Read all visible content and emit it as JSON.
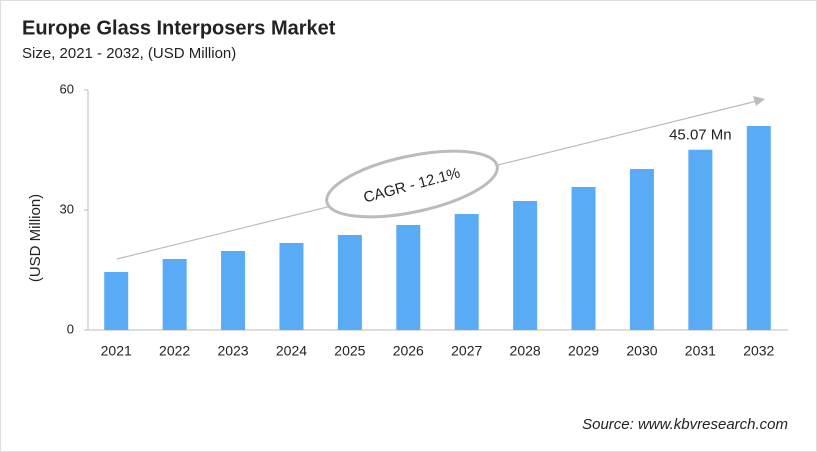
{
  "chart_data": {
    "type": "bar",
    "title": "Europe Glass Interposers Market",
    "subtitle": "Size, 2021 - 2032, (USD Million)",
    "y_label": "(USD Million)",
    "categories": [
      "2021",
      "2022",
      "2023",
      "2024",
      "2025",
      "2026",
      "2027",
      "2028",
      "2029",
      "2030",
      "2031",
      "2032"
    ],
    "values": [
      14.5,
      17.75,
      19.75,
      21.75,
      23.75,
      26.25,
      29,
      32.25,
      35.75,
      40.25,
      45.07,
      51
    ],
    "value_labels": [
      null,
      null,
      null,
      null,
      null,
      null,
      null,
      null,
      null,
      null,
      "45.07 Mn",
      null
    ],
    "color": "#5aabf5",
    "ylim": [
      0,
      60
    ],
    "yticks": [
      0,
      30,
      60
    ],
    "grid": false,
    "annotation": "CAGR - 12.1%",
    "source": "Source: www.kbvresearch.com"
  }
}
